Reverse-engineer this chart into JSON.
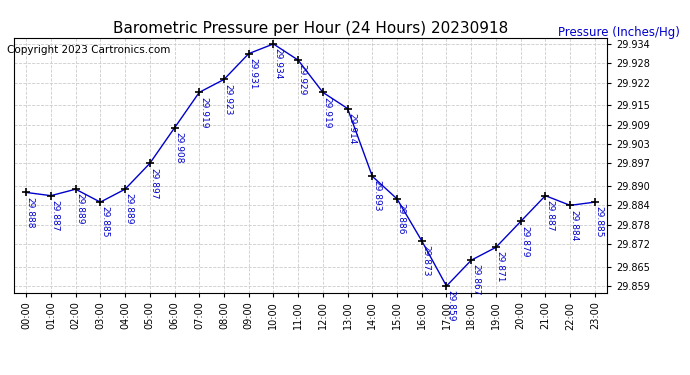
{
  "title": "Barometric Pressure per Hour (24 Hours) 20230918",
  "ylabel": "Pressure (Inches/Hg)",
  "copyright": "Copyright 2023 Cartronics.com",
  "hours": [
    0,
    1,
    2,
    3,
    4,
    5,
    6,
    7,
    8,
    9,
    10,
    11,
    12,
    13,
    14,
    15,
    16,
    17,
    18,
    19,
    20,
    21,
    22,
    23
  ],
  "x_labels": [
    "00:00",
    "01:00",
    "02:00",
    "03:00",
    "04:00",
    "05:00",
    "06:00",
    "07:00",
    "08:00",
    "09:00",
    "10:00",
    "11:00",
    "12:00",
    "13:00",
    "14:00",
    "15:00",
    "16:00",
    "17:00",
    "18:00",
    "19:00",
    "20:00",
    "21:00",
    "22:00",
    "23:00"
  ],
  "values": [
    29.888,
    29.887,
    29.889,
    29.885,
    29.889,
    29.897,
    29.908,
    29.919,
    29.923,
    29.931,
    29.934,
    29.929,
    29.919,
    29.914,
    29.893,
    29.886,
    29.873,
    29.859,
    29.867,
    29.871,
    29.879,
    29.887,
    29.884,
    29.885
  ],
  "line_color": "#0000cc",
  "marker": "+",
  "marker_size": 6,
  "marker_color": "#000000",
  "title_color": "#000000",
  "ylabel_color": "#0000cc",
  "copyright_color": "#000000",
  "grid_color": "#cccccc",
  "background_color": "#ffffff",
  "ytick_color": "#000000",
  "xtick_color": "#000000",
  "ylim_min": 29.857,
  "ylim_max": 29.936,
  "yticks": [
    29.859,
    29.865,
    29.872,
    29.878,
    29.884,
    29.89,
    29.897,
    29.903,
    29.909,
    29.915,
    29.922,
    29.928,
    29.934
  ],
  "ytick_labels": [
    "29.859",
    "29.865",
    "29.872",
    "29.878",
    "29.884",
    "29.890",
    "29.897",
    "29.903",
    "29.909",
    "29.915",
    "29.922",
    "29.928",
    "29.934"
  ],
  "label_fontsize": 7,
  "title_fontsize": 11,
  "ylabel_fontsize": 8.5,
  "copyright_fontsize": 7.5,
  "annotation_fontsize": 6.5,
  "annotation_color": "#0000cc",
  "annotation_rotation": 270
}
